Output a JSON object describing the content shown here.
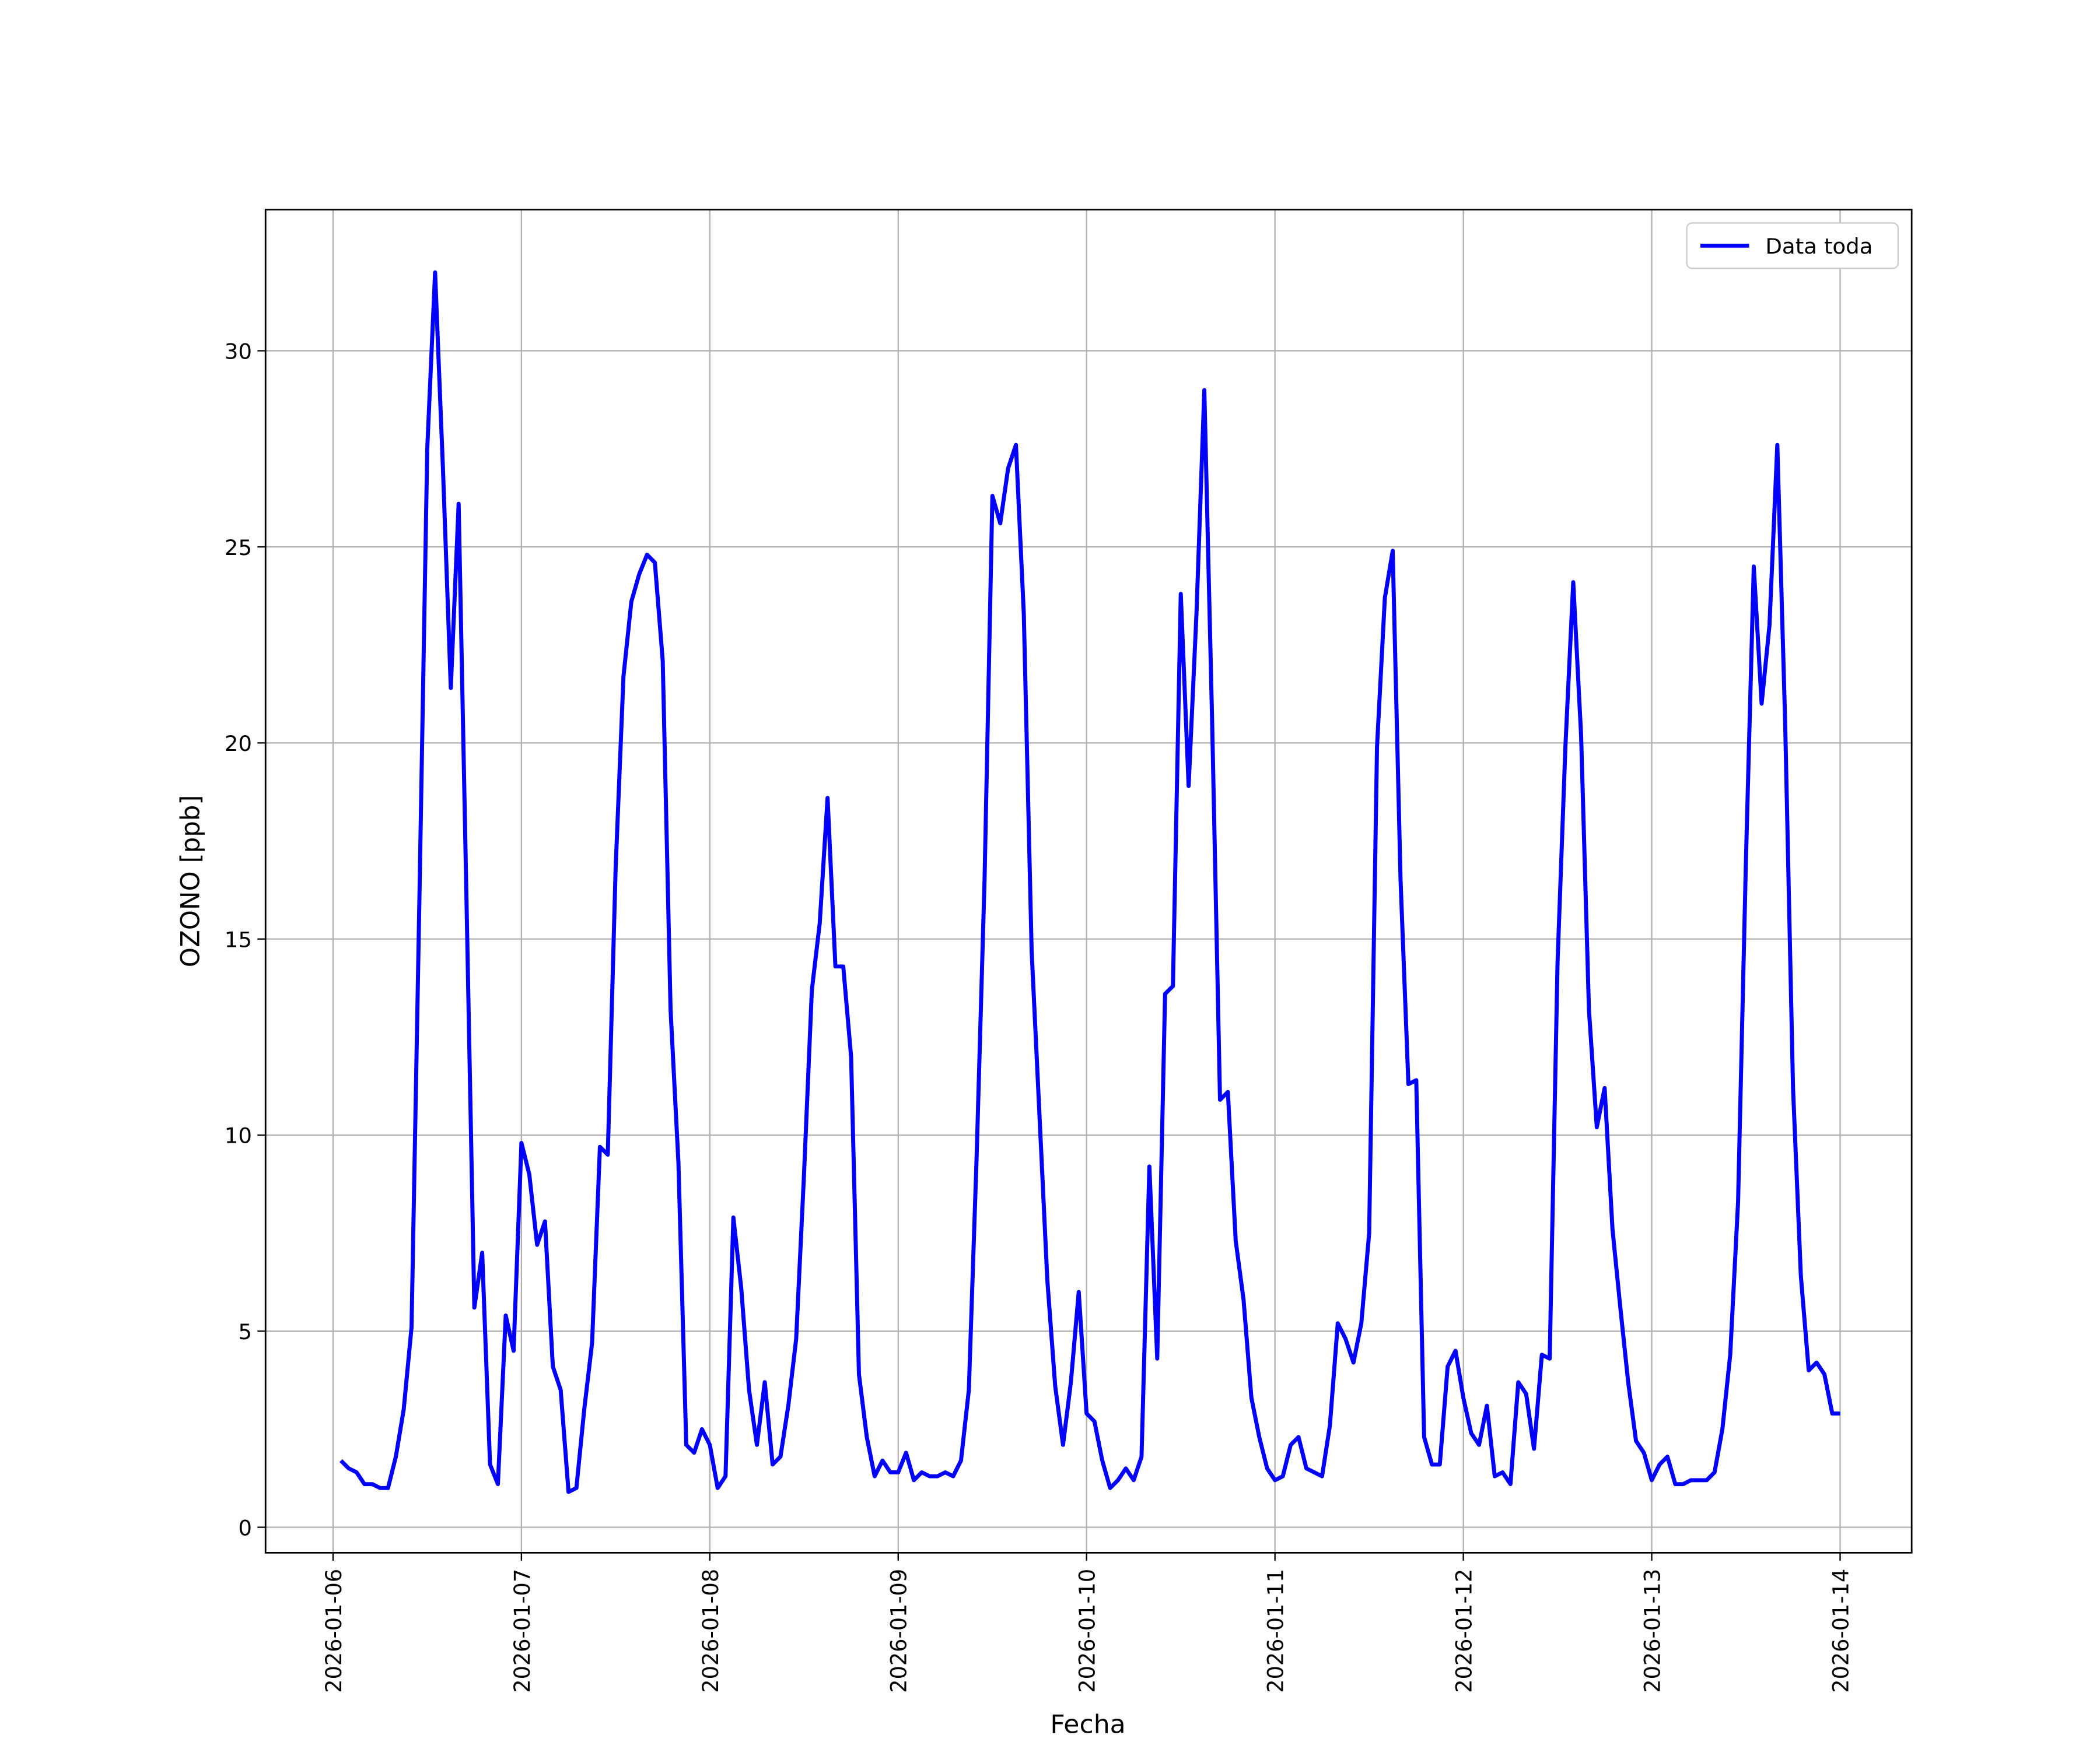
{
  "chart_data": {
    "type": "line",
    "xlabel": "Fecha",
    "ylabel": "OZONO [ppb]",
    "x": [
      "2026-01-06T01:00",
      "2026-01-06T02:00",
      "2026-01-06T03:00",
      "2026-01-06T04:00",
      "2026-01-06T05:00",
      "2026-01-06T06:00",
      "2026-01-06T07:00",
      "2026-01-06T08:00",
      "2026-01-06T09:00",
      "2026-01-06T10:00",
      "2026-01-06T11:00",
      "2026-01-06T12:00",
      "2026-01-06T13:00",
      "2026-01-06T14:00",
      "2026-01-06T15:00",
      "2026-01-06T16:00",
      "2026-01-06T17:00",
      "2026-01-06T18:00",
      "2026-01-06T19:00",
      "2026-01-06T20:00",
      "2026-01-06T21:00",
      "2026-01-06T22:00",
      "2026-01-06T23:00",
      "2026-01-07T00:00",
      "2026-01-07T01:00",
      "2026-01-07T02:00",
      "2026-01-07T03:00",
      "2026-01-07T04:00",
      "2026-01-07T05:00",
      "2026-01-07T06:00",
      "2026-01-07T07:00",
      "2026-01-07T08:00",
      "2026-01-07T09:00",
      "2026-01-07T10:00",
      "2026-01-07T11:00",
      "2026-01-07T12:00",
      "2026-01-07T13:00",
      "2026-01-07T14:00",
      "2026-01-07T15:00",
      "2026-01-07T16:00",
      "2026-01-07T17:00",
      "2026-01-07T18:00",
      "2026-01-07T19:00",
      "2026-01-07T20:00",
      "2026-01-07T21:00",
      "2026-01-07T22:00",
      "2026-01-07T23:00",
      "2026-01-08T00:00",
      "2026-01-08T01:00",
      "2026-01-08T02:00",
      "2026-01-08T03:00",
      "2026-01-08T04:00",
      "2026-01-08T05:00",
      "2026-01-08T06:00",
      "2026-01-08T07:00",
      "2026-01-08T08:00",
      "2026-01-08T09:00",
      "2026-01-08T10:00",
      "2026-01-08T11:00",
      "2026-01-08T12:00",
      "2026-01-08T13:00",
      "2026-01-08T14:00",
      "2026-01-08T15:00",
      "2026-01-08T16:00",
      "2026-01-08T17:00",
      "2026-01-08T18:00",
      "2026-01-08T19:00",
      "2026-01-08T20:00",
      "2026-01-08T21:00",
      "2026-01-08T22:00",
      "2026-01-08T23:00",
      "2026-01-09T00:00",
      "2026-01-09T01:00",
      "2026-01-09T02:00",
      "2026-01-09T03:00",
      "2026-01-09T04:00",
      "2026-01-09T05:00",
      "2026-01-09T06:00",
      "2026-01-09T07:00",
      "2026-01-09T08:00",
      "2026-01-09T09:00",
      "2026-01-09T10:00",
      "2026-01-09T11:00",
      "2026-01-09T12:00",
      "2026-01-09T13:00",
      "2026-01-09T14:00",
      "2026-01-09T15:00",
      "2026-01-09T16:00",
      "2026-01-09T17:00",
      "2026-01-09T18:00",
      "2026-01-09T19:00",
      "2026-01-09T20:00",
      "2026-01-09T21:00",
      "2026-01-09T22:00",
      "2026-01-09T23:00",
      "2026-01-10T00:00",
      "2026-01-10T01:00",
      "2026-01-10T02:00",
      "2026-01-10T03:00",
      "2026-01-10T04:00",
      "2026-01-10T05:00",
      "2026-01-10T06:00",
      "2026-01-10T07:00",
      "2026-01-10T08:00",
      "2026-01-10T09:00",
      "2026-01-10T10:00",
      "2026-01-10T11:00",
      "2026-01-10T12:00",
      "2026-01-10T13:00",
      "2026-01-10T14:00",
      "2026-01-10T15:00",
      "2026-01-10T16:00",
      "2026-01-10T17:00",
      "2026-01-10T18:00",
      "2026-01-10T19:00",
      "2026-01-10T20:00",
      "2026-01-10T21:00",
      "2026-01-10T22:00",
      "2026-01-10T23:00",
      "2026-01-11T00:00",
      "2026-01-11T01:00",
      "2026-01-11T02:00",
      "2026-01-11T03:00",
      "2026-01-11T04:00",
      "2026-01-11T05:00",
      "2026-01-11T06:00",
      "2026-01-11T07:00",
      "2026-01-11T08:00",
      "2026-01-11T09:00",
      "2026-01-11T10:00",
      "2026-01-11T11:00",
      "2026-01-11T12:00",
      "2026-01-11T13:00",
      "2026-01-11T14:00",
      "2026-01-11T15:00",
      "2026-01-11T16:00",
      "2026-01-11T17:00",
      "2026-01-11T18:00",
      "2026-01-11T19:00",
      "2026-01-11T20:00",
      "2026-01-11T21:00",
      "2026-01-11T22:00",
      "2026-01-11T23:00",
      "2026-01-12T00:00",
      "2026-01-12T01:00",
      "2026-01-12T02:00",
      "2026-01-12T03:00",
      "2026-01-12T04:00",
      "2026-01-12T05:00",
      "2026-01-12T06:00",
      "2026-01-12T07:00",
      "2026-01-12T08:00",
      "2026-01-12T09:00",
      "2026-01-12T10:00",
      "2026-01-12T11:00",
      "2026-01-12T12:00",
      "2026-01-12T13:00",
      "2026-01-12T14:00",
      "2026-01-12T15:00",
      "2026-01-12T16:00",
      "2026-01-12T17:00",
      "2026-01-12T18:00",
      "2026-01-12T19:00",
      "2026-01-12T20:00",
      "2026-01-12T21:00",
      "2026-01-12T22:00",
      "2026-01-12T23:00",
      "2026-01-13T00:00",
      "2026-01-13T01:00",
      "2026-01-13T02:00",
      "2026-01-13T03:00",
      "2026-01-13T04:00",
      "2026-01-13T05:00",
      "2026-01-13T06:00",
      "2026-01-13T07:00",
      "2026-01-13T08:00",
      "2026-01-13T09:00",
      "2026-01-13T10:00",
      "2026-01-13T11:00",
      "2026-01-13T12:00",
      "2026-01-13T13:00",
      "2026-01-13T14:00",
      "2026-01-13T15:00",
      "2026-01-13T16:00",
      "2026-01-13T17:00",
      "2026-01-13T18:00",
      "2026-01-13T19:00",
      "2026-01-13T20:00",
      "2026-01-13T21:00",
      "2026-01-13T22:00",
      "2026-01-13T23:00",
      "2026-01-14T00:00"
    ],
    "series": [
      {
        "name": "Data toda",
        "color": "#0000ff",
        "values": [
          1.7,
          1.5,
          1.4,
          1.1,
          1.1,
          1.0,
          1.0,
          1.8,
          3.0,
          5.1,
          16.0,
          27.5,
          32.0,
          27.0,
          21.4,
          26.1,
          16.0,
          5.6,
          7.0,
          1.6,
          1.1,
          5.4,
          4.5,
          9.8,
          9.0,
          7.2,
          7.8,
          4.1,
          3.5,
          0.9,
          1.0,
          3.0,
          4.7,
          9.7,
          9.5,
          16.8,
          21.7,
          23.6,
          24.3,
          24.8,
          24.6,
          22.1,
          13.2,
          9.3,
          2.1,
          1.9,
          2.5,
          2.1,
          1.0,
          1.3,
          7.9,
          6.1,
          3.5,
          2.1,
          3.7,
          1.6,
          1.8,
          3.1,
          4.8,
          9.0,
          13.7,
          15.4,
          18.6,
          14.3,
          14.3,
          12.0,
          3.9,
          2.3,
          1.3,
          1.7,
          1.4,
          1.4,
          1.9,
          1.2,
          1.4,
          1.3,
          1.3,
          1.4,
          1.3,
          1.7,
          3.5,
          9.5,
          16.5,
          26.3,
          25.6,
          27.0,
          27.6,
          23.3,
          14.7,
          10.5,
          6.3,
          3.6,
          2.1,
          3.7,
          6.0,
          2.9,
          2.7,
          1.7,
          1.0,
          1.2,
          1.5,
          1.2,
          1.8,
          9.2,
          4.3,
          13.6,
          13.8,
          23.8,
          18.9,
          23.3,
          29.0,
          20.5,
          10.9,
          11.1,
          7.3,
          5.8,
          3.3,
          2.3,
          1.5,
          1.2,
          1.3,
          2.1,
          2.3,
          1.5,
          1.4,
          1.3,
          2.6,
          5.2,
          4.8,
          4.2,
          5.2,
          7.5,
          19.9,
          23.7,
          24.9,
          16.5,
          11.3,
          11.4,
          2.3,
          1.6,
          1.6,
          4.1,
          4.5,
          3.3,
          2.4,
          2.1,
          3.1,
          1.3,
          1.4,
          1.1,
          3.7,
          3.4,
          2.0,
          4.4,
          4.3,
          14.4,
          19.9,
          24.1,
          20.2,
          13.2,
          10.2,
          11.2,
          7.6,
          5.6,
          3.7,
          2.2,
          1.9,
          1.2,
          1.6,
          1.8,
          1.1,
          1.1,
          1.2,
          1.2,
          1.2,
          1.4,
          2.5,
          4.4,
          8.3,
          17.0,
          24.5,
          21.0,
          23.0,
          27.6,
          20.5,
          11.2,
          6.4,
          4.0,
          4.2,
          3.9,
          2.9,
          2.9
        ]
      }
    ],
    "xlim": [
      "2026-01-05T15:24",
      "2026-01-14T09:07"
    ],
    "xticks": [
      "2026-01-06",
      "2026-01-07",
      "2026-01-08",
      "2026-01-09",
      "2026-01-10",
      "2026-01-11",
      "2026-01-12",
      "2026-01-13",
      "2026-01-14"
    ],
    "ylim": [
      -0.65,
      33.6
    ],
    "yticks": [
      0,
      5,
      10,
      15,
      20,
      25,
      30
    ],
    "grid": true,
    "legend": "upper-right"
  }
}
